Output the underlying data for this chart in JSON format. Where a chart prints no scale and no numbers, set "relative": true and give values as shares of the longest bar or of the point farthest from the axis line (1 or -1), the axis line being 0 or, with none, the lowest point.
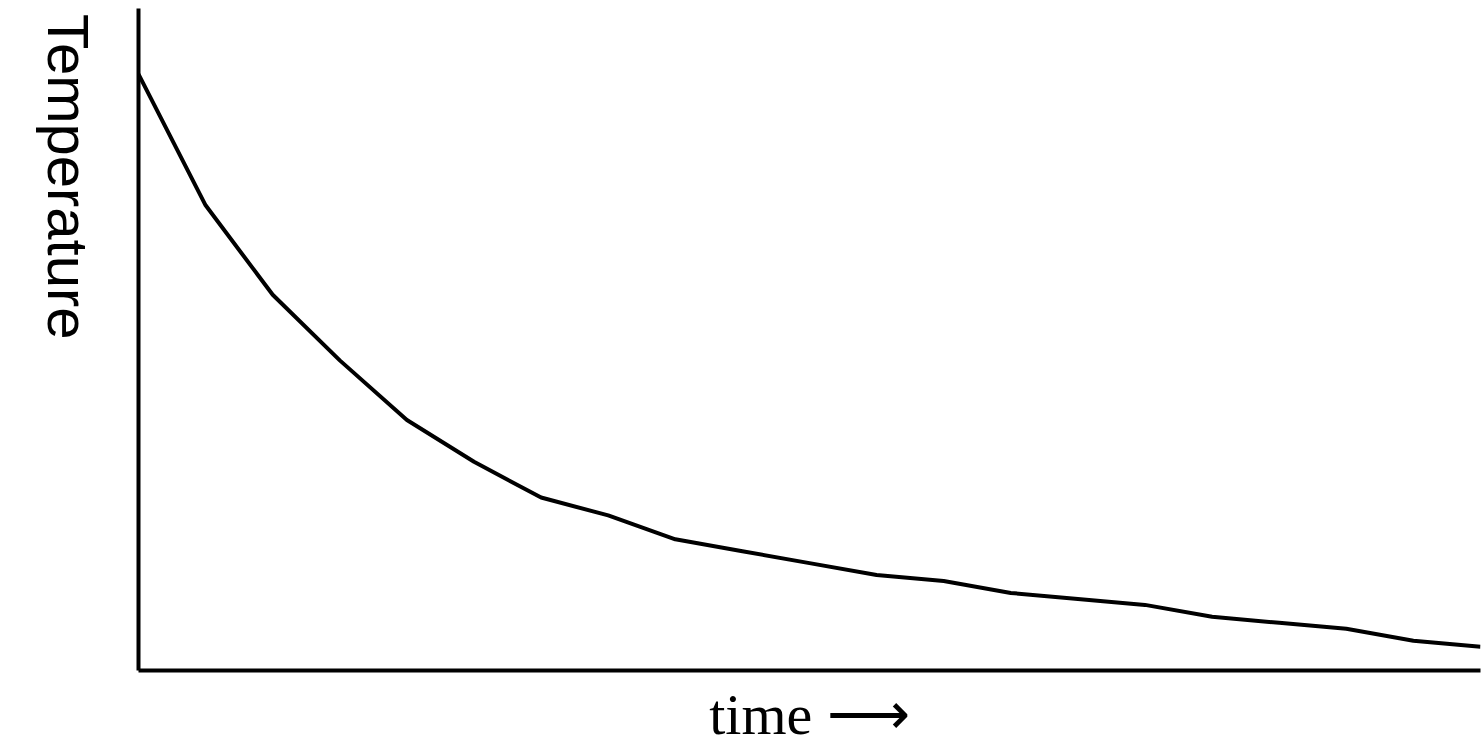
{
  "chart_data": {
    "type": "line",
    "relative": true,
    "xlabel": "time ⟶",
    "ylabel": "Temperature",
    "categories": [
      null,
      null,
      null,
      null,
      null,
      null,
      null,
      null,
      null,
      null,
      null,
      null,
      null,
      null,
      null,
      null,
      null,
      null,
      null,
      null,
      null
    ],
    "series": [
      {
        "color": "#000000",
        "values": [
          1,
          0.78,
          0.63,
          0.52,
          0.42,
          0.35,
          0.29,
          0.26,
          0.22,
          0.2,
          0.18,
          0.16,
          0.15,
          0.13,
          0.12,
          0.11,
          0.09,
          0.08,
          0.07,
          0.05,
          0.04
        ]
      }
    ],
    "grid": false
  }
}
